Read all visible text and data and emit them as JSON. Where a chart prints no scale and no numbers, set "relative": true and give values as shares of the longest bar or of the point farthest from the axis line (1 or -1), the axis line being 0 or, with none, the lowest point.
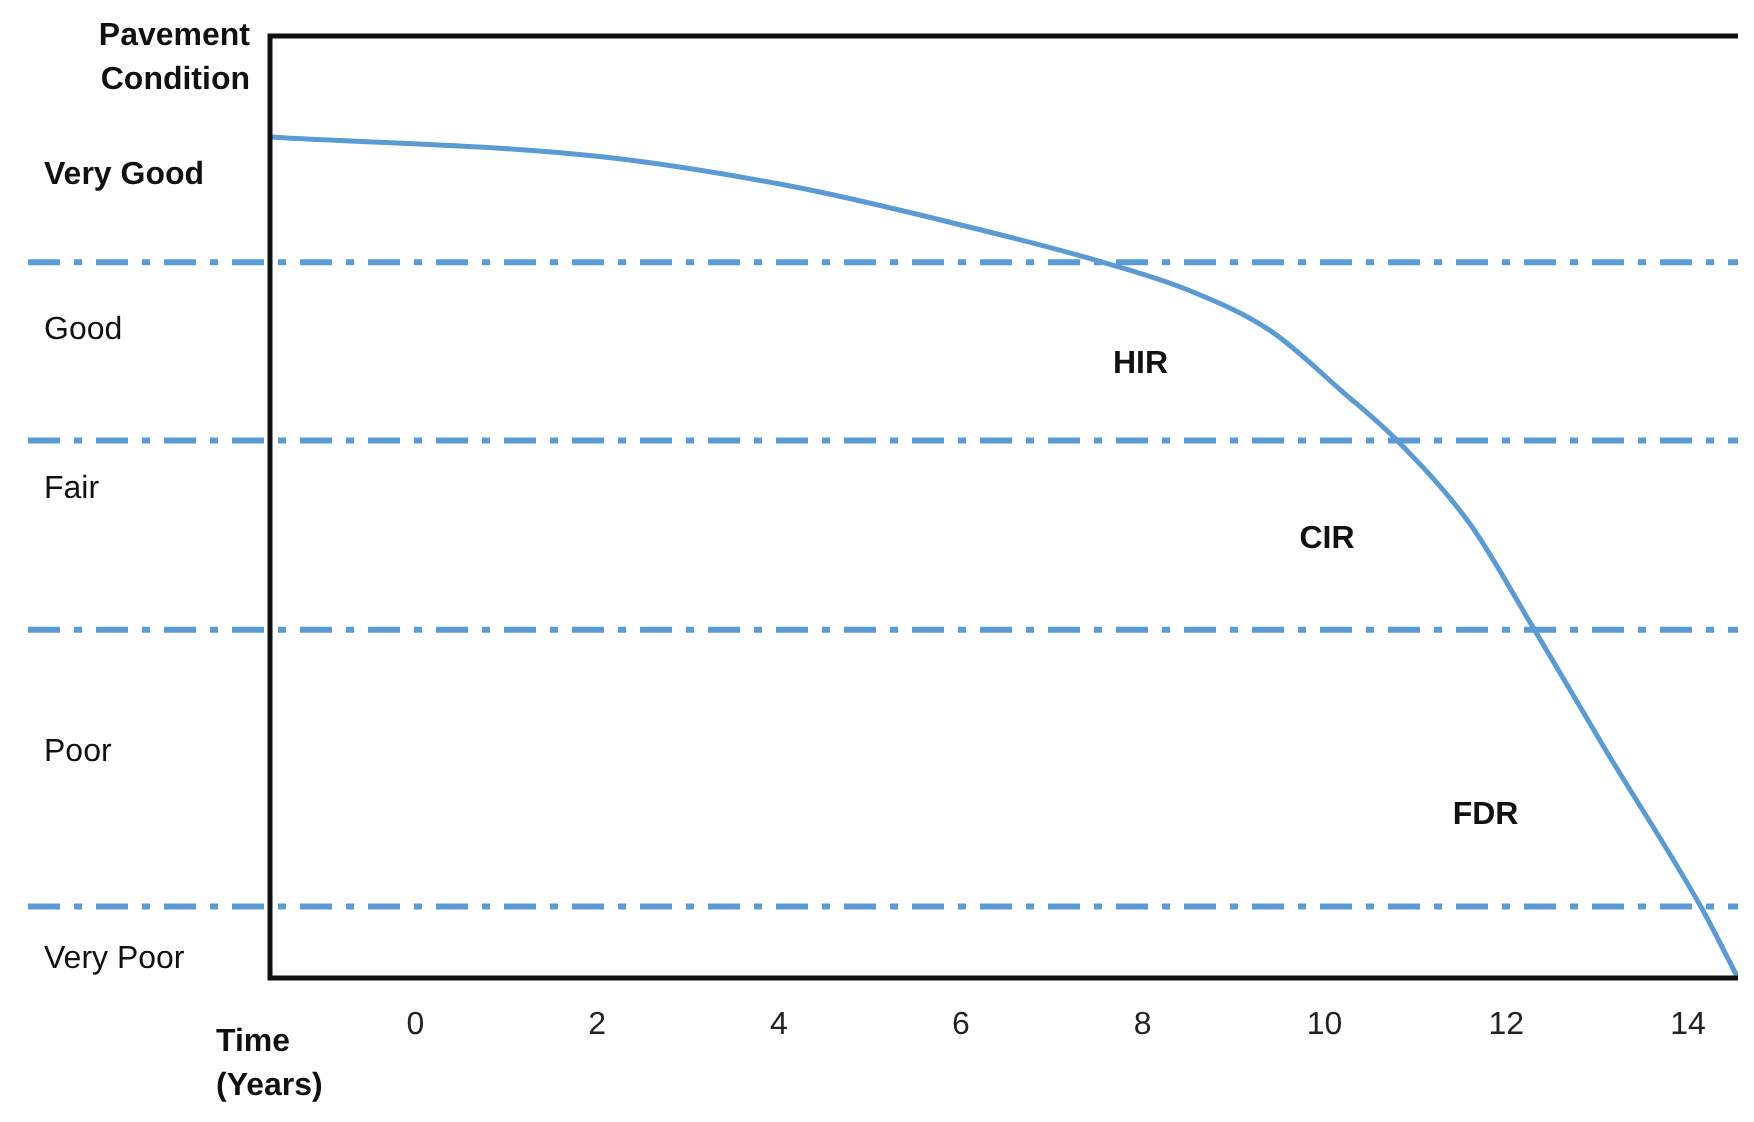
{
  "chart_data": {
    "type": "line",
    "relative": true,
    "xlabel": "Time (Years)",
    "ylabel": "Pavement Condition",
    "x": [
      -1.6,
      2,
      4.15,
      5.9,
      7.5,
      8.5,
      9.4,
      10.2,
      10.8,
      11.6,
      12.3,
      13.1,
      14.14,
      14.55
    ],
    "series": [
      {
        "color": "#5b9bd5",
        "values": [
          1,
          0.977,
          0.941,
          0.898,
          0.853,
          0.818,
          0.77,
          0.697,
          0.639,
          0.54,
          0.416,
          0.27,
          0.085,
          0
        ]
      }
    ],
    "xlim": [
      -1.6,
      14.55
    ],
    "xticks": [
      0,
      2,
      4,
      6,
      8,
      10,
      12,
      14
    ],
    "ref_lines": [
      {
        "axis": "y",
        "value": 0.851,
        "color": "#5b9bd5",
        "line_style": "dashed"
      },
      {
        "axis": "y",
        "value": 0.639,
        "color": "#5b9bd5",
        "line_style": "dashed"
      },
      {
        "axis": "y",
        "value": 0.414,
        "color": "#5b9bd5",
        "line_style": "dashed"
      },
      {
        "axis": "y",
        "value": 0.085,
        "color": "#5b9bd5",
        "line_style": "dashed"
      }
    ],
    "annotations": [
      "Very Good",
      "Good",
      "Fair",
      "Poor",
      "Very Poor",
      "HIR",
      "CIR",
      "FDR"
    ],
    "grid": false,
    "legend": false,
    "marker": "none",
    "line_style": "solid"
  }
}
